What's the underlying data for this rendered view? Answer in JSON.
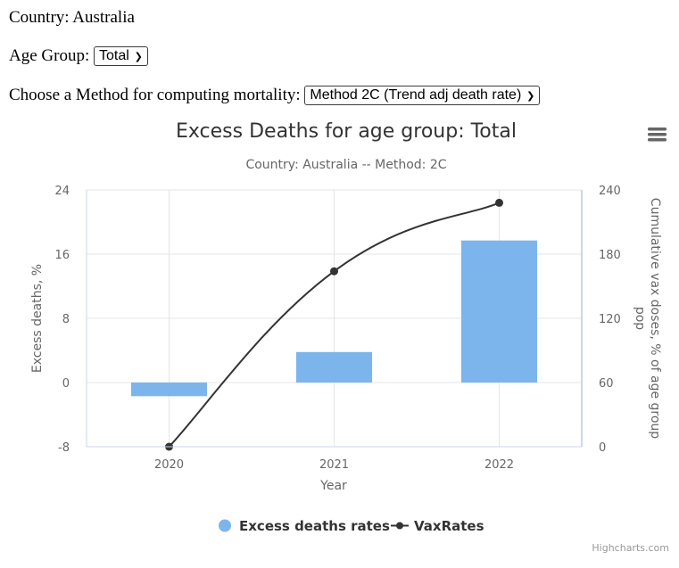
{
  "form": {
    "country_label": "Country:",
    "country_value": "Australia",
    "age_label": "Age Group:",
    "age_selected": "Total",
    "method_label": "Choose a Method for computing mortality:",
    "method_selected": "Method 2C (Trend adj death rate)"
  },
  "menu_icon": "hamburger-menu-icon",
  "credits": "Highcharts.com",
  "chart_data": {
    "type": "bar",
    "title": "Excess Deaths for age group: Total",
    "subtitle": "Country: Australia -- Method: 2C",
    "xlabel": "Year",
    "ylabel": "Excess deaths, %",
    "y2label": "Cumulative vax doses, % of age group pop",
    "categories": [
      "2020",
      "2021",
      "2022"
    ],
    "ylim": [
      -8,
      24
    ],
    "yticks": [
      "-8",
      "0",
      "8",
      "16",
      "24"
    ],
    "y2lim": [
      0,
      240
    ],
    "y2ticks": [
      "0",
      "60",
      "120",
      "180",
      "240"
    ],
    "grid": true,
    "legend_position": "bottom",
    "series": [
      {
        "name": "Excess deaths rates",
        "type": "column",
        "axis": "left",
        "color": "#7cb5ec",
        "values": [
          -1.7,
          3.8,
          17.7
        ]
      },
      {
        "name": "VaxRates",
        "type": "line",
        "axis": "right",
        "color": "#333333",
        "values": [
          0,
          164,
          228
        ]
      }
    ]
  }
}
